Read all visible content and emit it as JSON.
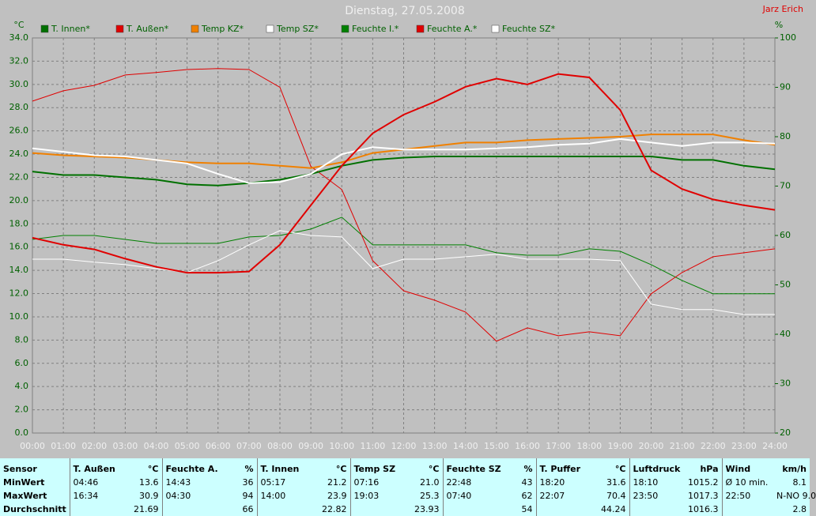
{
  "chart_data": {
    "type": "line",
    "title": "Dienstag, 27.05.2008",
    "credit": "Jarz Erich",
    "y_unit": "°C",
    "y2_unit": "%",
    "x": [
      0,
      1,
      2,
      3,
      4,
      5,
      6,
      7,
      8,
      9,
      10,
      11,
      12,
      13,
      14,
      15,
      16,
      17,
      18,
      19,
      20,
      21,
      22,
      23,
      24
    ],
    "xlim": [
      0,
      24
    ],
    "xticks": [
      {
        "value": 0,
        "label": "00:00"
      },
      {
        "value": 1,
        "label": "01:00"
      },
      {
        "value": 2,
        "label": "02:00"
      },
      {
        "value": 3,
        "label": "03:00"
      },
      {
        "value": 4,
        "label": "04:00"
      },
      {
        "value": 5,
        "label": "05:00"
      },
      {
        "value": 6,
        "label": "06:00"
      },
      {
        "value": 7,
        "label": "07:00"
      },
      {
        "value": 8,
        "label": "08:00"
      },
      {
        "value": 9,
        "label": "09:00"
      },
      {
        "value": 10,
        "label": "10:00"
      },
      {
        "value": 11,
        "label": "11:00"
      },
      {
        "value": 12,
        "label": "12:00"
      },
      {
        "value": 13,
        "label": "13:00"
      },
      {
        "value": 14,
        "label": "14:00"
      },
      {
        "value": 15,
        "label": "15:00"
      },
      {
        "value": 16,
        "label": "16:00"
      },
      {
        "value": 17,
        "label": "17:00"
      },
      {
        "value": 18,
        "label": "18:00"
      },
      {
        "value": 19,
        "label": "19:00"
      },
      {
        "value": 20,
        "label": "20:00"
      },
      {
        "value": 21,
        "label": "21:00"
      },
      {
        "value": 22,
        "label": "22:00"
      },
      {
        "value": 23,
        "label": "23:00"
      },
      {
        "value": 24,
        "label": "24:00"
      }
    ],
    "ylim": [
      0,
      34
    ],
    "yticks": [
      {
        "value": 0,
        "label": "0.0"
      },
      {
        "value": 2,
        "label": "2.0"
      },
      {
        "value": 4,
        "label": "4.0"
      },
      {
        "value": 6,
        "label": "6.0"
      },
      {
        "value": 8,
        "label": "8.0"
      },
      {
        "value": 10,
        "label": "10.0"
      },
      {
        "value": 12,
        "label": "12.0"
      },
      {
        "value": 14,
        "label": "14.0"
      },
      {
        "value": 16,
        "label": "16.0"
      },
      {
        "value": 18,
        "label": "18.0"
      },
      {
        "value": 20,
        "label": "20.0"
      },
      {
        "value": 22,
        "label": "22.0"
      },
      {
        "value": 24,
        "label": "24.0"
      },
      {
        "value": 26,
        "label": "26.0"
      },
      {
        "value": 28,
        "label": "28.0"
      },
      {
        "value": 30,
        "label": "30.0"
      },
      {
        "value": 32,
        "label": "32.0"
      },
      {
        "value": 34,
        "label": "34.0"
      }
    ],
    "y2lim": [
      20,
      100
    ],
    "y2ticks": [
      20,
      30,
      40,
      50,
      60,
      70,
      80,
      90,
      100
    ],
    "grid": true,
    "series": [
      {
        "name": "T. Innen*",
        "color": "#007000",
        "values": [
          22.5,
          22.2,
          22.2,
          22.0,
          21.8,
          21.4,
          21.3,
          21.5,
          21.8,
          22.3,
          23.0,
          23.5,
          23.7,
          23.8,
          23.8,
          23.8,
          23.8,
          23.8,
          23.8,
          23.8,
          23.8,
          23.5,
          23.5,
          23.0,
          22.7
        ]
      },
      {
        "name": "T. Außen*",
        "color": "#e00000",
        "values": [
          16.8,
          16.2,
          15.8,
          15.0,
          14.3,
          13.8,
          13.8,
          13.9,
          16.2,
          19.6,
          23.0,
          25.8,
          27.4,
          28.5,
          29.8,
          30.5,
          30.0,
          30.9,
          30.6,
          27.8,
          22.6,
          21.0,
          20.1,
          19.6,
          19.2
        ]
      },
      {
        "name": "Temp KZ*",
        "color": "#f08000",
        "values": [
          24.1,
          23.9,
          23.8,
          23.7,
          23.5,
          23.3,
          23.2,
          23.2,
          23.0,
          22.8,
          23.3,
          24.1,
          24.4,
          24.7,
          25.0,
          25.0,
          25.2,
          25.3,
          25.4,
          25.5,
          25.7,
          25.7,
          25.7,
          25.2,
          24.8
        ]
      },
      {
        "name": "Temp SZ*",
        "color": "#ffffff",
        "values": [
          24.5,
          24.2,
          23.9,
          23.8,
          23.5,
          23.2,
          22.3,
          21.5,
          21.6,
          22.3,
          24.0,
          24.6,
          24.4,
          24.4,
          24.4,
          24.5,
          24.6,
          24.8,
          24.9,
          25.3,
          25.0,
          24.7,
          25.0,
          25.0,
          24.9
        ]
      },
      {
        "name": "Feuchte I.*",
        "color": "#008000",
        "axis": "y2",
        "values": [
          59.2,
          60,
          60,
          59.2,
          58.4,
          58.4,
          58.4,
          59.7,
          60,
          61.3,
          63.7,
          58.1,
          58.1,
          58.1,
          58.1,
          56.5,
          56,
          56,
          57.3,
          56.8,
          54.1,
          50.9,
          48.2,
          48.2,
          48.2
        ]
      },
      {
        "name": "Feuchte A.*",
        "color": "#e00000",
        "axis": "y2",
        "values": [
          87.2,
          89.3,
          90.4,
          92.5,
          93,
          93.6,
          93.8,
          93.6,
          90,
          74,
          69.3,
          54.9,
          48.8,
          46.9,
          44.5,
          38.6,
          41.3,
          39.7,
          40.5,
          39.7,
          48.2,
          52.5,
          55.7,
          56.5,
          57.3
        ]
      },
      {
        "name": "Feuchte SZ*",
        "color": "#ffffff",
        "axis": "y2",
        "values": [
          55.2,
          55.2,
          54.6,
          54.1,
          53.3,
          52.5,
          54.9,
          58.1,
          61,
          60,
          59.7,
          53.3,
          55.2,
          55.2,
          55.7,
          56.2,
          55.2,
          55.2,
          55.2,
          54.9,
          46.1,
          45,
          45,
          44,
          44
        ]
      }
    ]
  },
  "stats_table": {
    "row_labels": [
      "Sensor",
      "MinWert",
      "MaxWert",
      "Durchschnitt"
    ],
    "columns": [
      {
        "name": "T. Außen",
        "unit": "°C",
        "rows": [
          [
            "04:46",
            "13.6"
          ],
          [
            "16:34",
            "30.9"
          ],
          [
            "21.69"
          ]
        ]
      },
      {
        "name": "Feuchte A.",
        "unit": "%",
        "rows": [
          [
            "14:43",
            "36"
          ],
          [
            "04:30",
            "94"
          ],
          [
            "66"
          ]
        ]
      },
      {
        "name": "T. Innen",
        "unit": "°C",
        "rows": [
          [
            "05:17",
            "21.2"
          ],
          [
            "14:00",
            "23.9"
          ],
          [
            "22.82"
          ]
        ]
      },
      {
        "name": "Temp SZ",
        "unit": "°C",
        "rows": [
          [
            "07:16",
            "21.0"
          ],
          [
            "19:03",
            "25.3"
          ],
          [
            "23.93"
          ]
        ]
      },
      {
        "name": "Feuchte SZ",
        "unit": "%",
        "rows": [
          [
            "22:48",
            "43"
          ],
          [
            "07:40",
            "62"
          ],
          [
            "54"
          ]
        ]
      },
      {
        "name": "T. Puffer",
        "unit": "°C",
        "rows": [
          [
            "18:20",
            "31.6"
          ],
          [
            "22:07",
            "70.4"
          ],
          [
            "44.24"
          ]
        ]
      },
      {
        "name": "Luftdruck",
        "unit": "hPa",
        "rows": [
          [
            "18:10",
            "1015.2"
          ],
          [
            "23:50",
            "1017.3"
          ],
          [
            "1016.3"
          ]
        ]
      },
      {
        "name": "Wind",
        "unit": "km/h",
        "rows": [
          [
            "Ø 10 min.",
            "8.1"
          ],
          [
            "22:50",
            "N-NO 9.0"
          ],
          [
            "2.8"
          ]
        ]
      }
    ]
  }
}
